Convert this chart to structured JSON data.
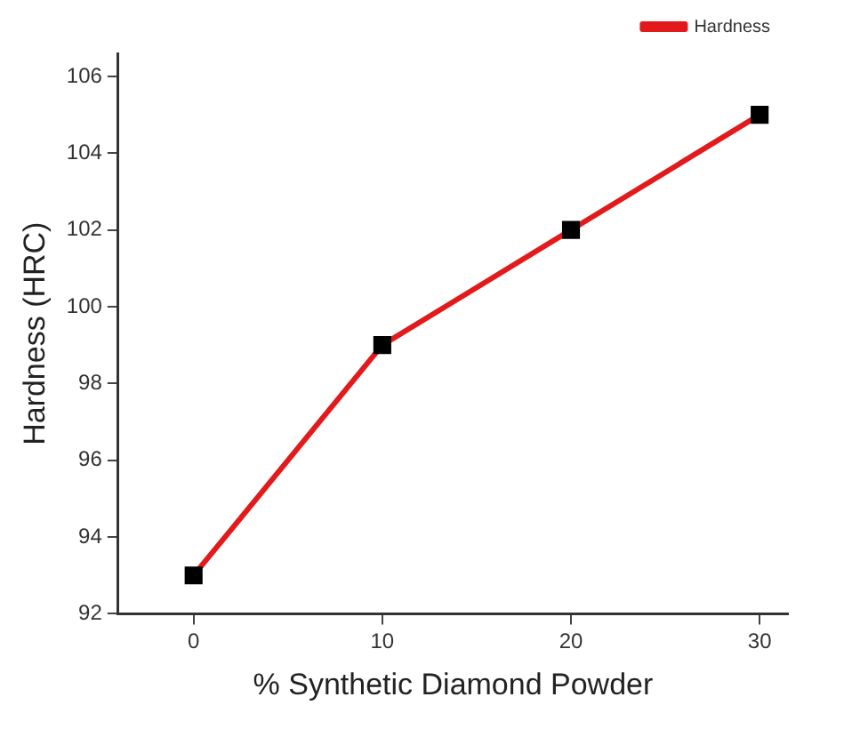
{
  "chart_data": {
    "type": "line",
    "xlabel": "% Synthetic Diamond Powder",
    "ylabel": "Hardness (HRC)",
    "x": [
      0,
      10,
      20,
      30
    ],
    "series": [
      {
        "name": "Hardness",
        "color": "#e31a1c",
        "values": [
          93,
          99,
          102,
          105
        ]
      }
    ],
    "xlim": [
      -4,
      31.5
    ],
    "xticks": [
      0,
      10,
      20,
      30
    ],
    "ylim": [
      92,
      106.6
    ],
    "yticks": [
      92,
      94,
      96,
      98,
      100,
      102,
      104,
      106
    ],
    "grid": false,
    "legend": "top right",
    "marker": "square",
    "line_style": "solid"
  }
}
